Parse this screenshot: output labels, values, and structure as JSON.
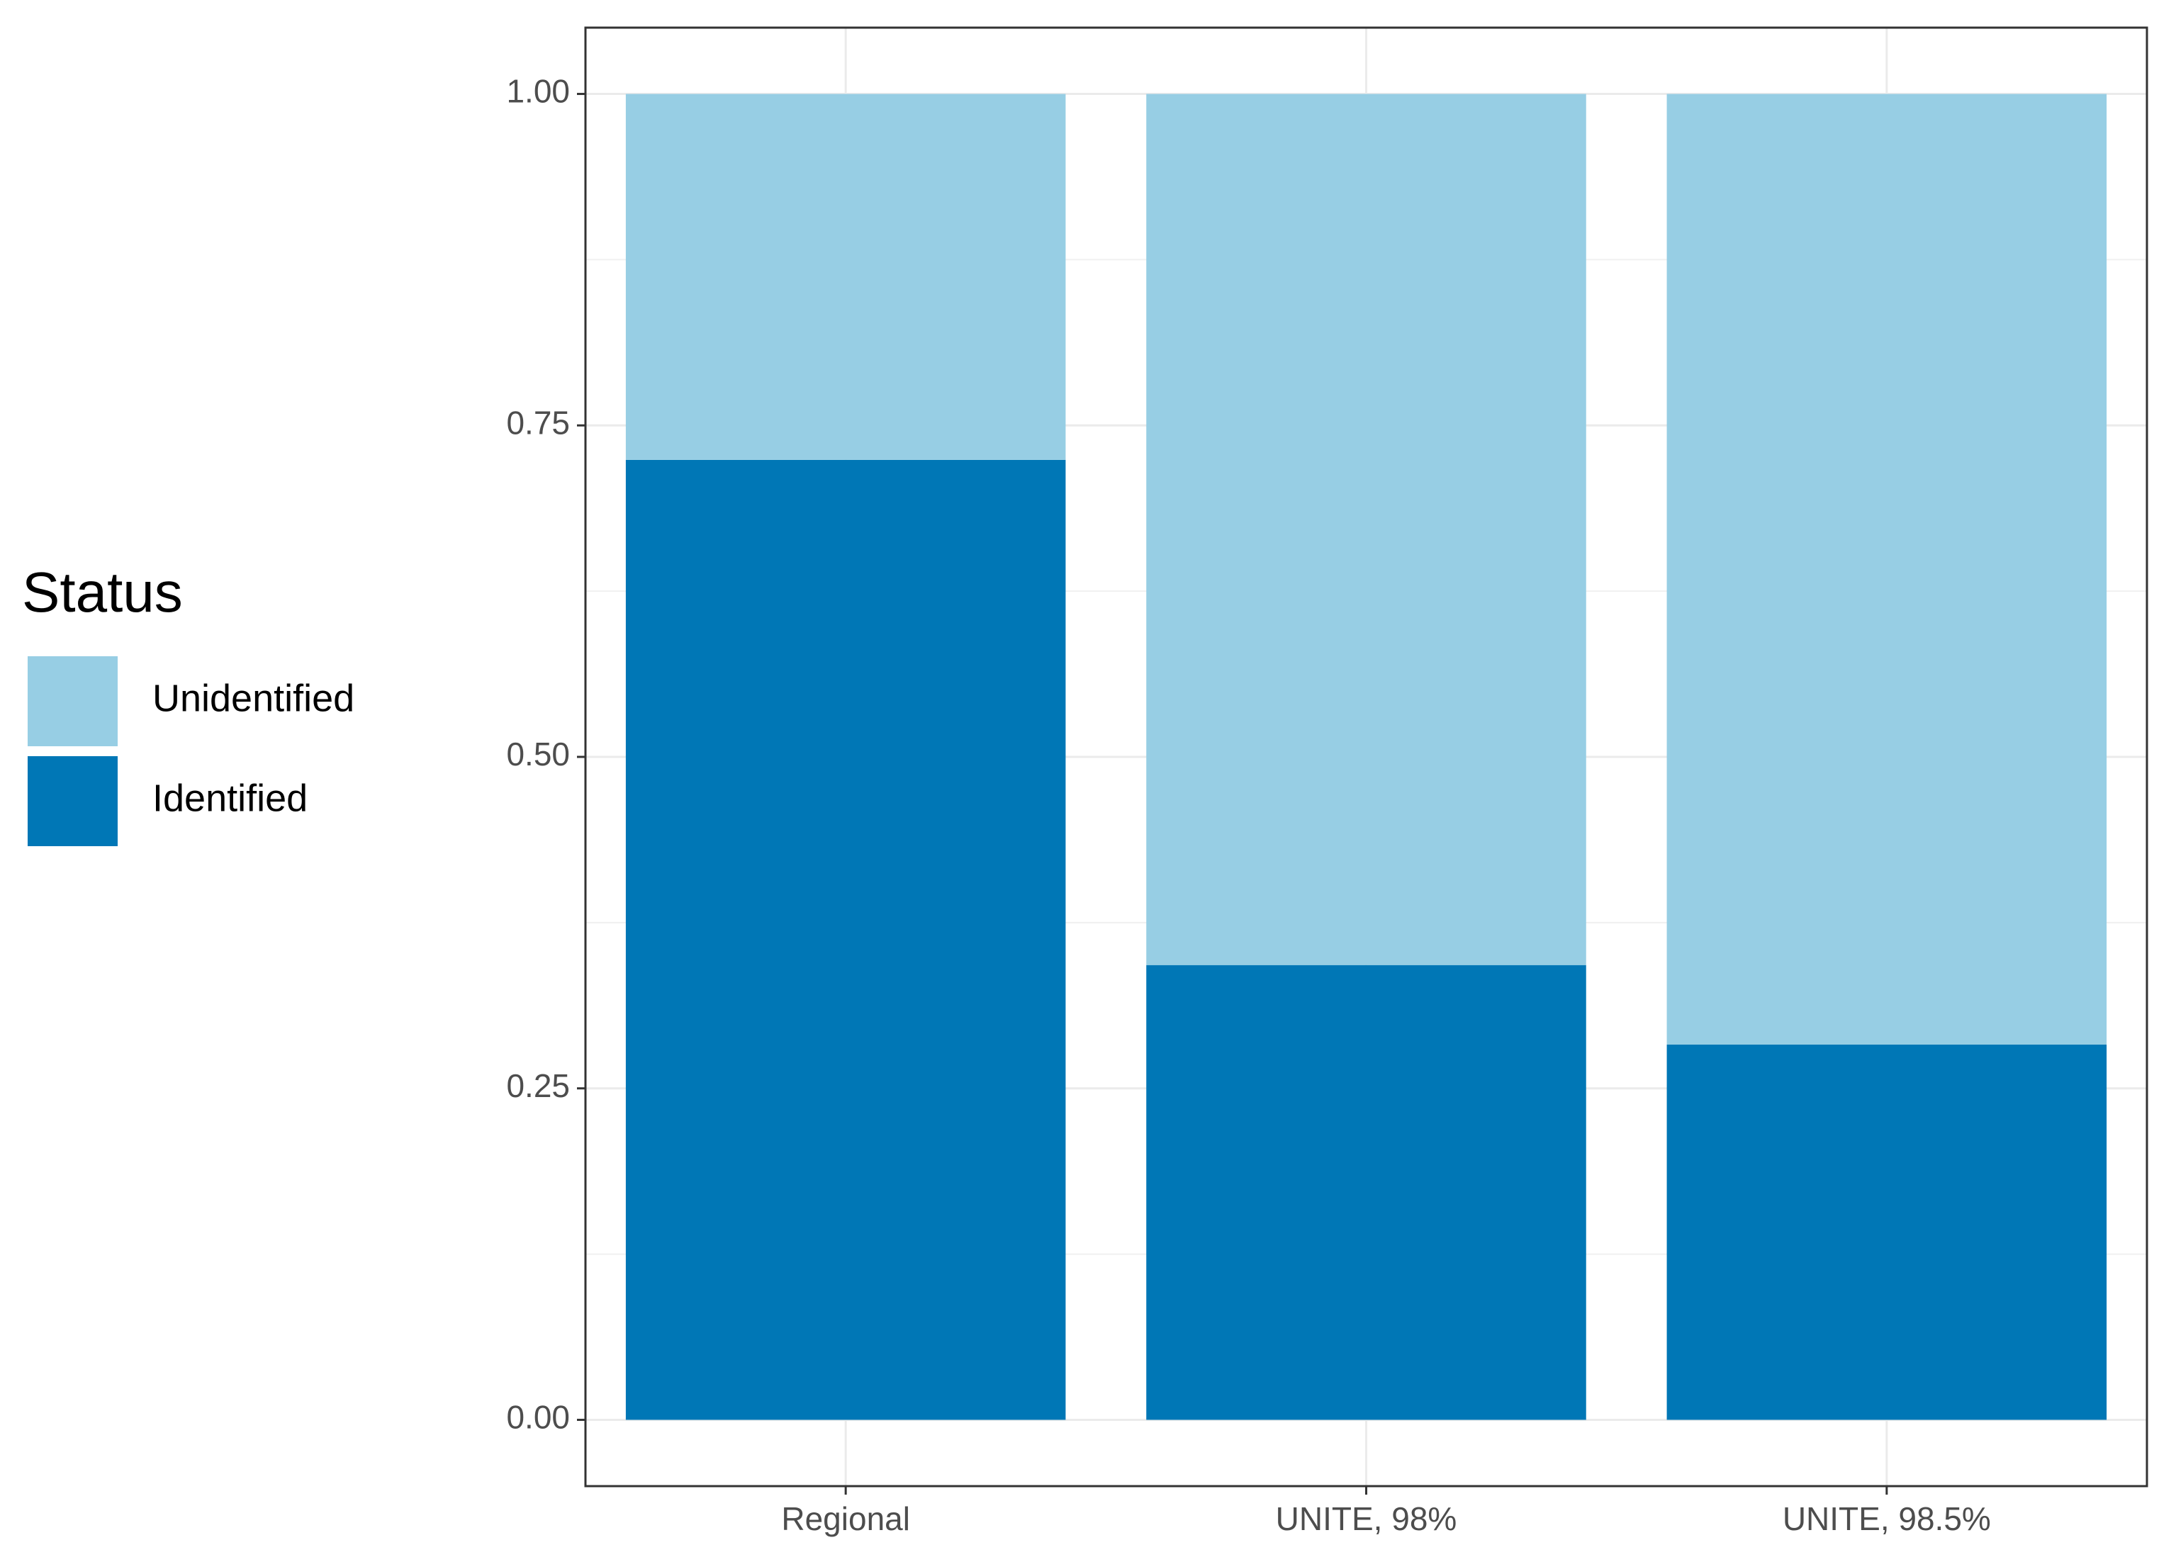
{
  "chart_data": {
    "type": "stacked_bar",
    "categories": [
      "Regional",
      "UNITE, 98%",
      "UNITE, 98.5%"
    ],
    "series": [
      {
        "name": "Identified",
        "color": "#0077b6",
        "values": [
          0.724,
          0.343,
          0.283
        ]
      },
      {
        "name": "Unidentified",
        "color": "#97cee4",
        "values": [
          0.276,
          0.657,
          0.717
        ]
      }
    ],
    "legend_title": "Status",
    "ylim": [
      -0.05,
      1.05
    ],
    "yticks": [
      {
        "value": 0,
        "label": "0.00"
      },
      {
        "value": 0.25,
        "label": "0.25"
      },
      {
        "value": 0.5,
        "label": "0.50"
      },
      {
        "value": 0.75,
        "label": "0.75"
      },
      {
        "value": 1,
        "label": "1.00"
      }
    ],
    "grid": true,
    "legend": "left"
  }
}
